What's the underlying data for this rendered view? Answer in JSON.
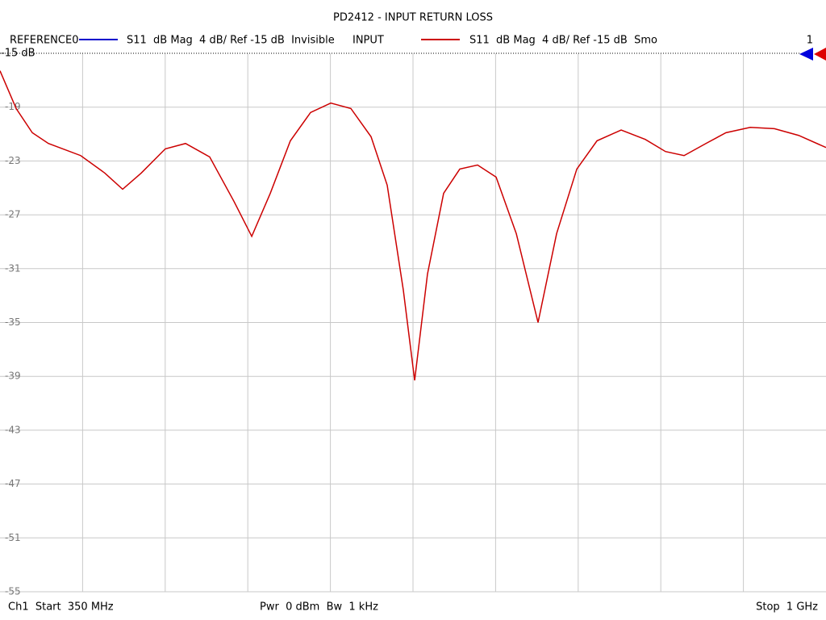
{
  "chart_data": {
    "type": "line",
    "title": "PD2412 - INPUT RETURN LOSS",
    "reference": {
      "name": "REFERENCE0",
      "color": "#0000cc",
      "description": "S11  dB Mag  4 dB/ Ref -15 dB  Invisible"
    },
    "series": [
      {
        "name": "INPUT",
        "color": "#cc0000",
        "description": "S11  dB Mag  4 dB/ Ref -15 dB  Smo",
        "values": [
          -16.3,
          -19.1,
          -20.9,
          -21.7,
          -22.6,
          -23.9,
          -25.1,
          -23.9,
          -22.1,
          -21.7,
          -22.7,
          -26.0,
          -28.6,
          -25.4,
          -21.5,
          -19.4,
          -18.7,
          -19.1,
          -21.2,
          -24.8,
          -32.6,
          -39.3,
          -31.4,
          -25.4,
          -23.6,
          -23.3,
          -24.2,
          -28.4,
          -35.0,
          -28.4,
          -23.6,
          -21.5,
          -20.7,
          -21.4,
          -22.3,
          -22.6,
          -21.7,
          -20.9,
          -20.5,
          -20.6,
          -21.1,
          -22.0
        ]
      }
    ],
    "x": [
      350,
      362.7,
      375.4,
      388.1,
      413.5,
      432.5,
      446.5,
      461.1,
      480.1,
      496.0,
      515.0,
      534.1,
      548.1,
      562.7,
      578.5,
      594.4,
      610.3,
      626.1,
      642.0,
      654.7,
      667.4,
      676.3,
      686.4,
      699.1,
      711.8,
      725.8,
      740.4,
      756.3,
      773.4,
      788.0,
      803.9,
      819.8,
      838.8,
      857.8,
      873.7,
      888.3,
      905.5,
      921.3,
      940.4,
      959.4,
      978.5,
      1000
    ],
    "xlim": [
      350,
      1000
    ],
    "xticks": [
      415,
      480,
      545,
      610,
      675,
      740,
      805,
      870,
      935
    ],
    "ylim": [
      -55,
      -15
    ],
    "yticks": [
      -19,
      -23,
      -27,
      -31,
      -35,
      -39,
      -43,
      -47,
      -51,
      -55
    ],
    "grid": true,
    "reference_label": "-15 dB",
    "marker_label": "1",
    "footer": {
      "start": "Ch1  Start  350 MHz",
      "power": "Pwr  0 dBm  Bw  1 kHz",
      "stop": "Stop  1 GHz"
    }
  }
}
